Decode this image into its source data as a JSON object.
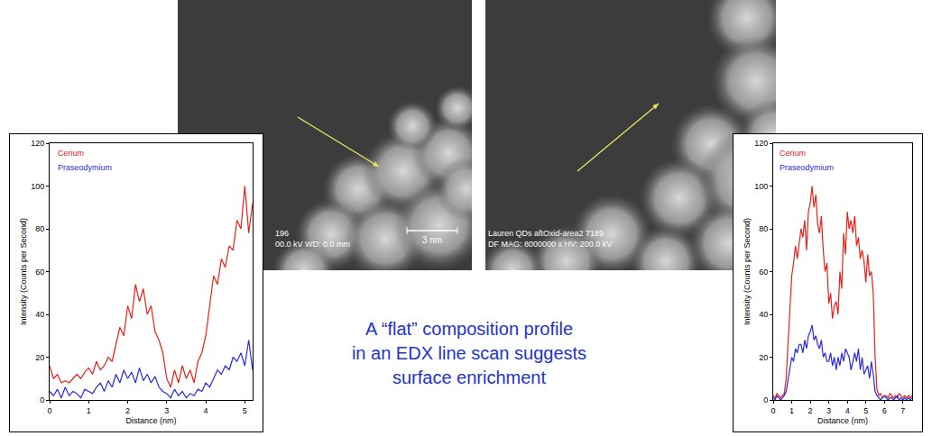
{
  "chart_data": [
    {
      "type": "line",
      "x_label": "Distance (nm)",
      "y_label": "Intensity (Counts per Second)",
      "x": [
        0,
        0.1,
        0.2,
        0.3,
        0.4,
        0.5,
        0.6,
        0.7,
        0.8,
        0.9,
        1,
        1.1,
        1.2,
        1.3,
        1.4,
        1.5,
        1.6,
        1.7,
        1.8,
        1.9,
        2,
        2.1,
        2.2,
        2.3,
        2.4,
        2.5,
        2.6,
        2.7,
        2.8,
        2.9,
        3,
        3.1,
        3.2,
        3.3,
        3.4,
        3.5,
        3.6,
        3.7,
        3.8,
        3.9,
        4,
        4.1,
        4.2,
        4.3,
        4.4,
        4.5,
        4.6,
        4.7,
        4.8,
        4.9,
        5,
        5.1,
        5.2
      ],
      "xlim": [
        0,
        5.2
      ],
      "xticks": [
        0,
        1,
        2,
        3,
        4,
        5
      ],
      "ylim": [
        0,
        120
      ],
      "yticks": [
        0,
        20,
        40,
        60,
        80,
        100,
        120
      ],
      "grid": false,
      "legend": "upper left",
      "series": [
        {
          "name": "Cerium",
          "color": "#e8201a",
          "values": [
            16,
            10,
            12,
            8,
            9,
            8,
            10,
            12,
            10,
            13,
            15,
            12,
            18,
            14,
            16,
            20,
            18,
            26,
            34,
            30,
            44,
            38,
            54,
            46,
            52,
            40,
            44,
            32,
            28,
            22,
            10,
            6,
            14,
            8,
            16,
            10,
            14,
            8,
            18,
            22,
            30,
            44,
            58,
            54,
            66,
            62,
            72,
            70,
            84,
            80,
            100,
            78,
            92
          ]
        },
        {
          "name": "Praseodymium",
          "color": "#2a2ae0",
          "values": [
            4,
            2,
            5,
            1,
            6,
            2,
            4,
            3,
            1,
            5,
            4,
            3,
            6,
            8,
            4,
            9,
            6,
            12,
            8,
            14,
            10,
            13,
            8,
            15,
            9,
            12,
            8,
            11,
            6,
            4,
            3,
            1,
            5,
            2,
            4,
            1,
            3,
            2,
            5,
            4,
            8,
            6,
            10,
            14,
            12,
            16,
            14,
            20,
            18,
            22,
            16,
            28,
            14
          ]
        }
      ]
    },
    {
      "type": "line",
      "x_label": "Distance (nm)",
      "y_label": "Intensity (Counts per Second)",
      "x": [
        0,
        0.1,
        0.2,
        0.3,
        0.4,
        0.5,
        0.6,
        0.7,
        0.8,
        0.9,
        1,
        1.1,
        1.2,
        1.3,
        1.4,
        1.5,
        1.6,
        1.7,
        1.8,
        1.9,
        2,
        2.1,
        2.2,
        2.3,
        2.4,
        2.5,
        2.6,
        2.7,
        2.8,
        2.9,
        3,
        3.1,
        3.2,
        3.3,
        3.4,
        3.5,
        3.6,
        3.7,
        3.8,
        3.9,
        4,
        4.1,
        4.2,
        4.3,
        4.4,
        4.5,
        4.6,
        4.7,
        4.8,
        4.9,
        5,
        5.1,
        5.2,
        5.3,
        5.4,
        5.5,
        5.6,
        5.7,
        5.8,
        5.9,
        6,
        6.1,
        6.2,
        6.3,
        6.4,
        6.5,
        6.6,
        6.7,
        6.8,
        6.9,
        7,
        7.1,
        7.2,
        7.3,
        7.4,
        7.5
      ],
      "xlim": [
        0,
        7.5
      ],
      "xticks": [
        0,
        1,
        2,
        3,
        4,
        5,
        6,
        7
      ],
      "ylim": [
        0,
        120
      ],
      "yticks": [
        0,
        20,
        40,
        60,
        80,
        100,
        120
      ],
      "grid": false,
      "legend": "upper left",
      "series": [
        {
          "name": "Cerium",
          "color": "#e8201a",
          "values": [
            2,
            1,
            3,
            2,
            1,
            2,
            3,
            10,
            28,
            42,
            58,
            64,
            72,
            66,
            74,
            80,
            76,
            84,
            70,
            88,
            92,
            100,
            90,
            96,
            82,
            78,
            86,
            70,
            60,
            64,
            45,
            50,
            38,
            44,
            46,
            40,
            60,
            52,
            78,
            68,
            88,
            80,
            84,
            78,
            86,
            72,
            76,
            66,
            70,
            65,
            55,
            68,
            58,
            60,
            50,
            20,
            5,
            2,
            3,
            1,
            2,
            2,
            1,
            3,
            2,
            1,
            2,
            1,
            3,
            2,
            1,
            2,
            1,
            2,
            1,
            2
          ]
        },
        {
          "name": "Praseodymium",
          "color": "#2a2ae0",
          "values": [
            1,
            0,
            2,
            1,
            0,
            1,
            2,
            4,
            10,
            14,
            20,
            18,
            24,
            22,
            26,
            26,
            22,
            28,
            24,
            30,
            32,
            35,
            28,
            30,
            26,
            24,
            28,
            20,
            22,
            18,
            18,
            22,
            16,
            20,
            14,
            20,
            16,
            22,
            18,
            24,
            22,
            20,
            14,
            18,
            22,
            18,
            24,
            14,
            20,
            12,
            14,
            16,
            10,
            18,
            12,
            4,
            2,
            1,
            0,
            1,
            2,
            1,
            0,
            1,
            1,
            0,
            1,
            2,
            0,
            1,
            0,
            1,
            0,
            1,
            0,
            1
          ]
        }
      ]
    }
  ],
  "images": [
    {
      "labels": [
        "196",
        "00.0 kV WD: 0.0 mm"
      ],
      "scale_bar": "3 nm"
    },
    {
      "labels": [
        "Lauren QDs aftOxid-area2 7189",
        "DF MAG: 8000000 x HV: 200.0 kV"
      ]
    }
  ],
  "caption": [
    "A “flat” composition profile",
    "in an EDX line scan suggests",
    "surface enrichment"
  ]
}
